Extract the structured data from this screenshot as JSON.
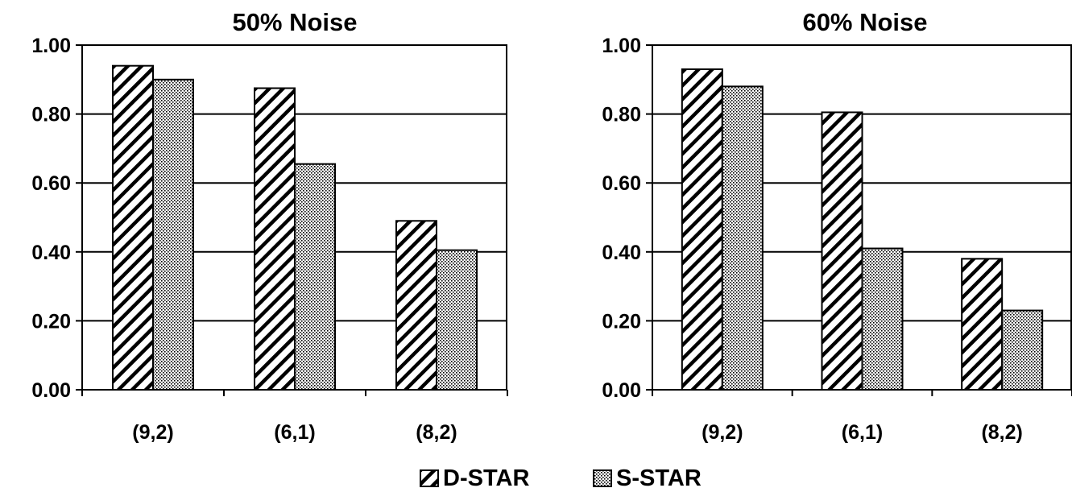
{
  "chart_data": [
    {
      "type": "bar",
      "title": "50% Noise",
      "categories": [
        "(9,2)",
        "(6,1)",
        "(8,2)"
      ],
      "series": [
        {
          "name": "D-STAR",
          "values": [
            0.94,
            0.875,
            0.49
          ]
        },
        {
          "name": "S-STAR",
          "values": [
            0.9,
            0.655,
            0.405
          ]
        }
      ],
      "xlabel": "",
      "ylabel": "",
      "ylim": [
        0,
        1.0
      ],
      "yticks": [
        "0.00",
        "0.20",
        "0.40",
        "0.60",
        "0.80",
        "1.00"
      ],
      "grid": true
    },
    {
      "type": "bar",
      "title": "60% Noise",
      "categories": [
        "(9,2)",
        "(6,1)",
        "(8,2)"
      ],
      "series": [
        {
          "name": "D-STAR",
          "values": [
            0.93,
            0.805,
            0.38
          ]
        },
        {
          "name": "S-STAR",
          "values": [
            0.88,
            0.41,
            0.23
          ]
        }
      ],
      "xlabel": "",
      "ylabel": "",
      "ylim": [
        0,
        1.0
      ],
      "yticks": [
        "0.00",
        "0.20",
        "0.40",
        "0.60",
        "0.80",
        "1.00"
      ],
      "grid": true
    }
  ],
  "legend": {
    "position": "bottom",
    "entries": [
      {
        "label": "D-STAR",
        "pattern": "diagonal-hatch"
      },
      {
        "label": "S-STAR",
        "pattern": "dots"
      }
    ]
  }
}
